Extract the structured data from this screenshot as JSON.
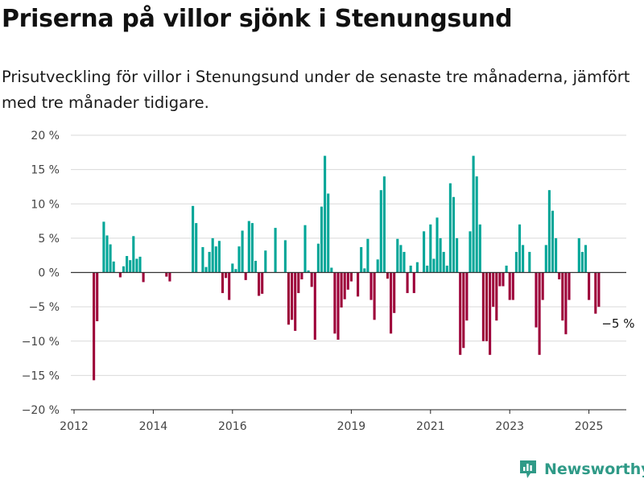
{
  "header": {
    "title": "Priserna på villor sjönk i Stenungsund",
    "subtitle": "Prisutveckling för villor i Stenungsund under de senaste tre månaderna, jämfört med tre månader tidigare."
  },
  "brand": {
    "name": "Newsworthy",
    "icon": "bar-chart-logo-icon"
  },
  "colors": {
    "positive": "#00a698",
    "negative": "#9d0039",
    "grid": "#d9d9d9",
    "baseline": "#333333"
  },
  "chart_data": {
    "type": "bar",
    "x_unit": "month",
    "ylim": [
      -20,
      20
    ],
    "yticks": [
      20,
      15,
      10,
      5,
      0,
      -5,
      -10,
      -15,
      -20
    ],
    "ytick_labels": [
      "20 %",
      "15 %",
      "10 %",
      "5 %",
      "0 %",
      "−5 %",
      "−10 %",
      "−15 %",
      "−20 %"
    ],
    "xticks": [
      "2012-01",
      "2014-01",
      "2016-01",
      "2019-01",
      "2021-01",
      "2023-01",
      "2025-01"
    ],
    "xtick_labels": [
      "2012",
      "2014",
      "2016",
      "2019",
      "2021",
      "2023",
      "2025"
    ],
    "grid": true,
    "annotation": {
      "label": "−5 %",
      "x": "2025-04",
      "y": -5
    },
    "x": [
      "2012-07",
      "2012-08",
      "2012-09",
      "2012-10",
      "2012-11",
      "2012-12",
      "2013-01",
      "2013-02",
      "2013-03",
      "2013-04",
      "2013-05",
      "2013-06",
      "2013-07",
      "2013-08",
      "2013-09",
      "2013-10",
      "2013-11",
      "2013-12",
      "2014-01",
      "2014-02",
      "2014-03",
      "2014-04",
      "2014-05",
      "2014-06",
      "2014-07",
      "2014-08",
      "2014-09",
      "2014-10",
      "2014-11",
      "2014-12",
      "2015-01",
      "2015-02",
      "2015-03",
      "2015-04",
      "2015-05",
      "2015-06",
      "2015-07",
      "2015-08",
      "2015-09",
      "2015-10",
      "2015-11",
      "2015-12",
      "2016-01",
      "2016-02",
      "2016-03",
      "2016-04",
      "2016-05",
      "2016-06",
      "2016-07",
      "2016-08",
      "2016-09",
      "2016-10",
      "2016-11",
      "2016-12",
      "2017-01",
      "2017-02",
      "2017-03",
      "2017-04",
      "2017-05",
      "2017-06",
      "2017-07",
      "2017-08",
      "2017-09",
      "2017-10",
      "2017-11",
      "2017-12",
      "2018-01",
      "2018-02",
      "2018-03",
      "2018-04",
      "2018-05",
      "2018-06",
      "2018-07",
      "2018-08",
      "2018-09",
      "2018-10",
      "2018-11",
      "2018-12",
      "2019-01",
      "2019-02",
      "2019-03",
      "2019-04",
      "2019-05",
      "2019-06",
      "2019-07",
      "2019-08",
      "2019-09",
      "2019-10",
      "2019-11",
      "2019-12",
      "2020-01",
      "2020-02",
      "2020-03",
      "2020-04",
      "2020-05",
      "2020-06",
      "2020-07",
      "2020-08",
      "2020-09",
      "2020-10",
      "2020-11",
      "2020-12",
      "2021-01",
      "2021-02",
      "2021-03",
      "2021-04",
      "2021-05",
      "2021-06",
      "2021-07",
      "2021-08",
      "2021-09",
      "2021-10",
      "2021-11",
      "2021-12",
      "2022-01",
      "2022-02",
      "2022-03",
      "2022-04",
      "2022-05",
      "2022-06",
      "2022-07",
      "2022-08",
      "2022-09",
      "2022-10",
      "2022-11",
      "2022-12",
      "2023-01",
      "2023-02",
      "2023-03",
      "2023-04",
      "2023-05",
      "2023-06",
      "2023-07",
      "2023-08",
      "2023-09",
      "2023-10",
      "2023-11",
      "2023-12",
      "2024-01",
      "2024-02",
      "2024-03",
      "2024-04",
      "2024-05",
      "2024-06",
      "2024-07",
      "2024-08",
      "2024-09",
      "2024-10",
      "2024-11",
      "2024-12",
      "2025-01",
      "2025-02",
      "2025-03",
      "2025-04"
    ],
    "values": [
      -15.7,
      -7.1,
      null,
      7.4,
      5.4,
      4.1,
      1.6,
      null,
      -0.7,
      0.9,
      2.4,
      1.8,
      5.3,
      2.0,
      2.3,
      -1.4,
      null,
      null,
      null,
      null,
      null,
      null,
      -0.6,
      -1.3,
      null,
      null,
      null,
      null,
      null,
      null,
      9.7,
      7.2,
      null,
      3.7,
      0.8,
      3.0,
      5.0,
      3.8,
      4.6,
      -3.0,
      -0.8,
      -4.0,
      1.3,
      0.5,
      3.8,
      6.1,
      -1.1,
      7.5,
      7.2,
      1.7,
      -3.4,
      -3.1,
      3.2,
      null,
      null,
      6.5,
      null,
      null,
      4.7,
      -7.6,
      -6.9,
      -8.5,
      -3.0,
      -1.0,
      6.9,
      0.3,
      -2.1,
      -9.8,
      4.2,
      9.6,
      17.0,
      11.5,
      0.7,
      -8.9,
      -9.8,
      -5.1,
      -3.9,
      -2.5,
      -1.3,
      null,
      -3.5,
      3.7,
      0.6,
      4.9,
      -4.0,
      -6.9,
      1.9,
      12.0,
      14.0,
      -0.9,
      -8.9,
      -5.9,
      4.9,
      4.0,
      3.0,
      -3.0,
      1.0,
      -3.0,
      1.5,
      null,
      6.0,
      1.0,
      7.0,
      2.0,
      8.0,
      5.0,
      3.0,
      1.0,
      13.0,
      11.0,
      5.0,
      -12.0,
      -11.0,
      -7.0,
      6.0,
      17.0,
      14.0,
      7.0,
      -10.0,
      -10.0,
      -12.0,
      -5.0,
      -7.0,
      -2.0,
      -2.0,
      1.0,
      -4.0,
      -4.0,
      3.0,
      7.0,
      4.0,
      null,
      3.0,
      null,
      -8.0,
      -12.0,
      -4.0,
      4.0,
      12.0,
      9.0,
      5.0,
      -1.0,
      -7.0,
      -9.0,
      -4.0,
      null,
      null,
      5.0,
      3.0,
      4.0,
      -4.0,
      null,
      -6.0,
      -5.0
    ]
  }
}
